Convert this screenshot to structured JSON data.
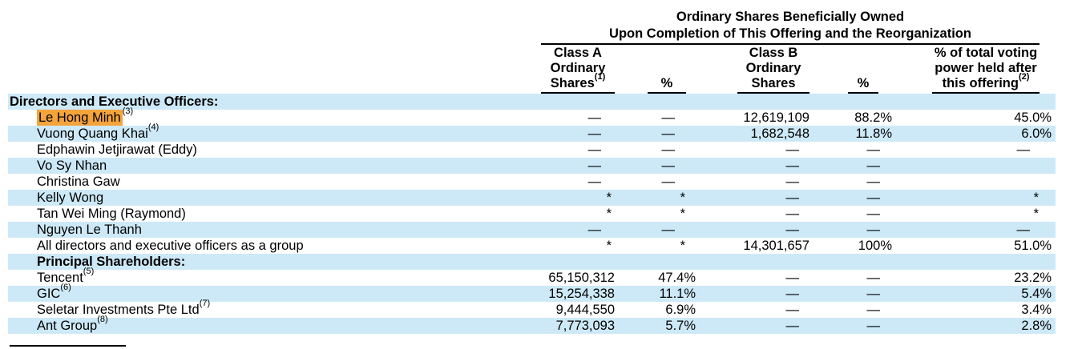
{
  "accent_colors": {
    "row_stripe": "#cde9f8",
    "search_highlight": "#f5a33b",
    "rule_color": "#000000"
  },
  "table": {
    "title_line1": "Ordinary Shares Beneficially Owned",
    "title_line2": "Upon Completion of This Offering and the Reorganization",
    "columns": [
      {
        "id": "class-a-shares",
        "lines": [
          "Class A",
          "Ordinary",
          "Shares"
        ],
        "sup": "(1)"
      },
      {
        "id": "class-a-percent",
        "lines": [
          "%"
        ],
        "sup": ""
      },
      {
        "id": "class-b-shares",
        "lines": [
          "Class B",
          "Ordinary",
          "Shares"
        ],
        "sup": ""
      },
      {
        "id": "class-b-percent",
        "lines": [
          "%"
        ],
        "sup": ""
      },
      {
        "id": "voting-power",
        "lines": [
          "% of total voting",
          "power held after",
          "this offering"
        ],
        "sup": "(2)"
      }
    ],
    "rows": [
      {
        "label": "Directors and Executive Officers:",
        "sup": "",
        "bold": true,
        "indent": false,
        "highlight": false,
        "stripe": true,
        "cells": [
          "",
          "",
          "",
          "",
          ""
        ]
      },
      {
        "label": "Le Hong Minh",
        "sup": "(3)",
        "bold": false,
        "indent": true,
        "highlight": true,
        "stripe": false,
        "cells": [
          "—",
          "—",
          "12,619,109",
          "88.2%",
          "45.0%"
        ]
      },
      {
        "label": "Vuong Quang Khai",
        "sup": "(4)",
        "bold": false,
        "indent": true,
        "highlight": false,
        "stripe": true,
        "cells": [
          "—",
          "—",
          "1,682,548",
          "11.8%",
          "6.0%"
        ]
      },
      {
        "label": "Edphawin Jetjirawat (Eddy)",
        "sup": "",
        "bold": false,
        "indent": true,
        "highlight": false,
        "stripe": false,
        "cells": [
          "—",
          "—",
          "—",
          "—",
          "—"
        ]
      },
      {
        "label": "Vo Sy Nhan",
        "sup": "",
        "bold": false,
        "indent": true,
        "highlight": false,
        "stripe": true,
        "cells": [
          "—",
          "—",
          "—",
          "—",
          ""
        ]
      },
      {
        "label": "Christina Gaw",
        "sup": "",
        "bold": false,
        "indent": true,
        "highlight": false,
        "stripe": false,
        "cells": [
          "—",
          "—",
          "—",
          "—",
          ""
        ]
      },
      {
        "label": "Kelly Wong",
        "sup": "",
        "bold": false,
        "indent": true,
        "highlight": false,
        "stripe": true,
        "cells": [
          "*",
          "*",
          "—",
          "—",
          "*"
        ]
      },
      {
        "label": "Tan Wei Ming (Raymond)",
        "sup": "",
        "bold": false,
        "indent": true,
        "highlight": false,
        "stripe": false,
        "cells": [
          "*",
          "*",
          "—",
          "—",
          "*"
        ]
      },
      {
        "label": "Nguyen Le Thanh",
        "sup": "",
        "bold": false,
        "indent": true,
        "highlight": false,
        "stripe": true,
        "cells": [
          "—",
          "—",
          "—",
          "—",
          "—"
        ]
      },
      {
        "label": "All directors and executive officers as a group",
        "sup": "",
        "bold": false,
        "indent": true,
        "highlight": false,
        "stripe": false,
        "cells": [
          "*",
          "*",
          "14,301,657",
          "100%",
          "51.0%"
        ]
      },
      {
        "label": "Principal Shareholders:",
        "sup": "",
        "bold": true,
        "indent": true,
        "highlight": false,
        "stripe": true,
        "cells": [
          "",
          "",
          "",
          "",
          ""
        ]
      },
      {
        "label": "Tencent",
        "sup": "(5)",
        "bold": false,
        "indent": true,
        "highlight": false,
        "stripe": false,
        "cells": [
          "65,150,312",
          "47.4%",
          "—",
          "—",
          "23.2%"
        ]
      },
      {
        "label": "GIC",
        "sup": "(6)",
        "bold": false,
        "indent": true,
        "highlight": false,
        "stripe": true,
        "cells": [
          "15,254,338",
          "11.1%",
          "—",
          "—",
          "5.4%"
        ]
      },
      {
        "label": "Seletar Investments Pte Ltd",
        "sup": "(7)",
        "bold": false,
        "indent": true,
        "highlight": false,
        "stripe": false,
        "cells": [
          "9,444,550",
          "6.9%",
          "—",
          "—",
          "3.4%"
        ]
      },
      {
        "label": "Ant Group",
        "sup": "(8)",
        "bold": false,
        "indent": true,
        "highlight": false,
        "stripe": true,
        "cells": [
          "7,773,093",
          "5.7%",
          "—",
          "—",
          "2.8%"
        ]
      }
    ]
  }
}
